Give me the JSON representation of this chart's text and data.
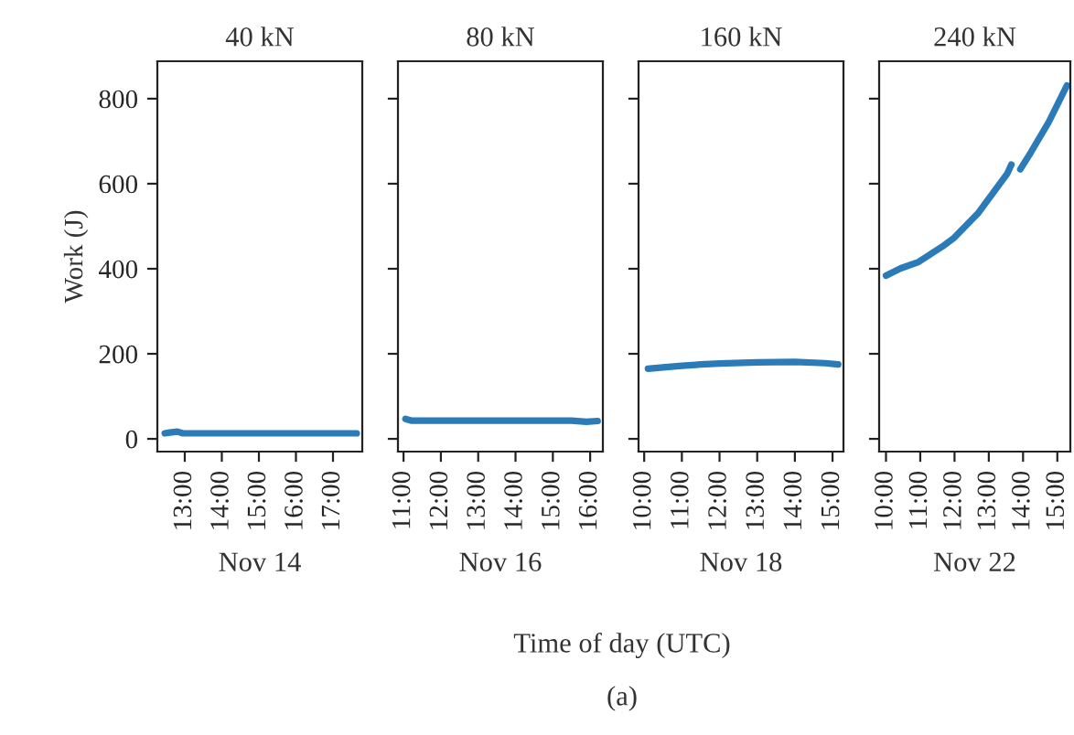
{
  "chart_data": [
    {
      "type": "line",
      "title": "40 kN",
      "xlabel": "Nov 14",
      "ylabel": "Work (J)",
      "annotations": [
        "Time of day (UTC)",
        "(a)"
      ],
      "series": [
        {
          "color": "#2b7bb9",
          "x": [
            12.46,
            12.6,
            12.8,
            12.95,
            13.5,
            14.5,
            15.5,
            16.5,
            17.64
          ],
          "values": [
            13,
            15,
            17,
            13,
            13,
            13,
            13,
            13,
            13
          ]
        }
      ],
      "xlim": [
        12.26,
        17.79
      ],
      "xticks": [
        {
          "value": 13,
          "label": "13:00"
        },
        {
          "value": 14,
          "label": "14:00"
        },
        {
          "value": 15,
          "label": "15:00"
        },
        {
          "value": 16,
          "label": "16:00"
        },
        {
          "value": 17,
          "label": "17:00"
        }
      ],
      "ylim": [
        -30,
        888
      ],
      "yticks": [
        0,
        200,
        400,
        600,
        800
      ]
    },
    {
      "type": "line",
      "title": "80 kN",
      "xlabel": "Nov 16",
      "tick_labels": "x",
      "series": [
        {
          "color": "#2b7bb9",
          "x": [
            11.05,
            11.2,
            12.5,
            14.0,
            15.5,
            15.9,
            16.2
          ],
          "values": [
            47,
            43,
            43,
            43,
            43,
            40,
            42
          ]
        }
      ],
      "xlim": [
        10.85,
        16.34
      ],
      "xticks": [
        {
          "value": 11,
          "label": "11:00"
        },
        {
          "value": 12,
          "label": "12:00"
        },
        {
          "value": 13,
          "label": "13:00"
        },
        {
          "value": 14,
          "label": "14:00"
        },
        {
          "value": 15,
          "label": "15:00"
        },
        {
          "value": 16,
          "label": "16:00"
        }
      ],
      "ylim": [
        -30,
        888
      ],
      "yticks": [
        0,
        200,
        400,
        600,
        800
      ]
    },
    {
      "type": "line",
      "title": "160 kN",
      "xlabel": "Nov 18",
      "tick_labels": "x",
      "series": [
        {
          "color": "#2b7bb9",
          "x": [
            10.1,
            10.5,
            11.0,
            11.5,
            12.0,
            13.0,
            14.0,
            14.8,
            15.15
          ],
          "values": [
            165,
            168,
            172,
            175,
            177,
            180,
            181,
            178,
            175
          ]
        }
      ],
      "xlim": [
        9.85,
        15.29
      ],
      "xticks": [
        {
          "value": 10,
          "label": "10:00"
        },
        {
          "value": 11,
          "label": "11:00"
        },
        {
          "value": 12,
          "label": "12:00"
        },
        {
          "value": 13,
          "label": "13:00"
        },
        {
          "value": 14,
          "label": "14:00"
        },
        {
          "value": 15,
          "label": "15:00"
        }
      ],
      "ylim": [
        -30,
        888
      ],
      "yticks": [
        0,
        200,
        400,
        600,
        800
      ]
    },
    {
      "type": "line",
      "title": "240 kN",
      "xlabel": "Nov 22",
      "tick_labels": "x",
      "series": [
        {
          "color": "#2b7bb9",
          "x": [
            10.0,
            10.43,
            10.95,
            11.64,
            11.99,
            12.68,
            13.54,
            13.66,
            13.8,
            13.92,
            14.23,
            14.75,
            15.28
          ],
          "values": [
            384,
            401,
            416,
            452,
            473,
            530,
            624,
            645,
            null,
            634,
            674,
            745,
            831
          ]
        }
      ],
      "xlim": [
        9.8,
        15.38
      ],
      "xticks": [
        {
          "value": 10,
          "label": "10:00"
        },
        {
          "value": 11,
          "label": "11:00"
        },
        {
          "value": 12,
          "label": "12:00"
        },
        {
          "value": 13,
          "label": "13:00"
        },
        {
          "value": 14,
          "label": "14:00"
        },
        {
          "value": 15,
          "label": "15:00"
        }
      ],
      "ylim": [
        -30,
        888
      ],
      "yticks": [
        0,
        200,
        400,
        600,
        800
      ]
    }
  ]
}
